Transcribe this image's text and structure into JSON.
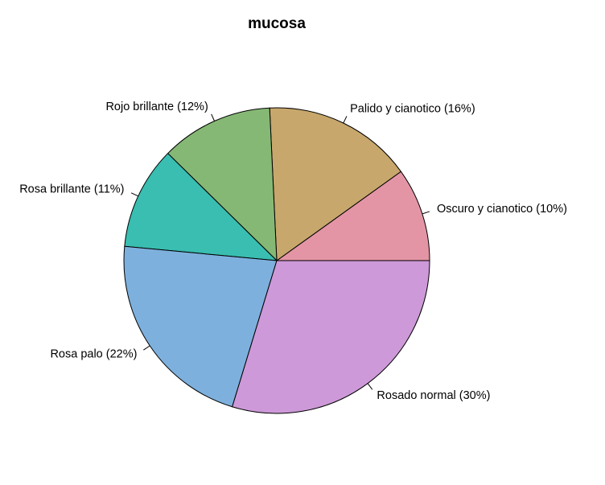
{
  "chart_data": {
    "type": "pie",
    "title": "mucosa",
    "categories": [
      "Oscuro y cianotico (10%)",
      "Palido y cianotico (16%)",
      "Rojo brillante (12%)",
      "Rosa brillante (11%)",
      "Rosa palo (22%)",
      "Rosado normal (30%)"
    ],
    "values": [
      10,
      16,
      12,
      11,
      22,
      30
    ],
    "colors": [
      "#E495A5",
      "#C7A76C",
      "#86B875",
      "#39BEB1",
      "#7DB0DD",
      "#CD99D8"
    ]
  }
}
